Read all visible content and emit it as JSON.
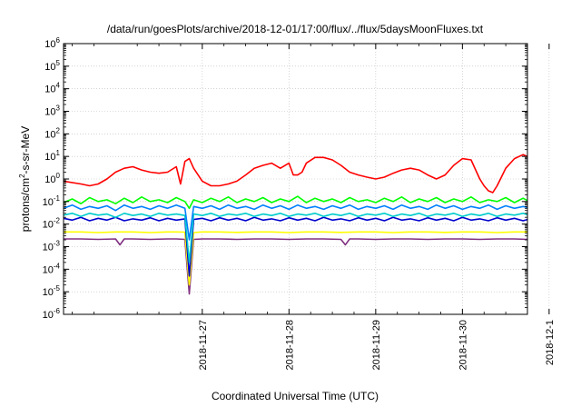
{
  "chart_data": {
    "type": "line",
    "title": "/data/run/goesPlots/archive/2018-12-01/17:00/flux/../flux/5daysMoonFluxes.txt",
    "xlabel": "Coordinated Universal Time (UTC)",
    "ylabel": {
      "base": "protons/cm",
      "sup": "2",
      "rest": "-s-sr-MeV"
    },
    "x_ticks": [
      "2018-11-27",
      "2018-11-28",
      "2018-11-29",
      "2018-11-30",
      "2018-12-1"
    ],
    "xlim_days": [
      -1.6,
      3.75
    ],
    "y_scale": "log",
    "y_ticks": [
      "10^-6",
      "10^-5",
      "10^-4",
      "10^-3",
      "10^-2",
      "10^-1",
      "10^0",
      "10^1",
      "10^2",
      "10^3",
      "10^4",
      "10^5",
      "10^6"
    ],
    "ylim_exp": [
      -6,
      6
    ],
    "grid": true,
    "series": [
      {
        "color": "#ff0000",
        "x": [
          -1.6,
          -1.4,
          -1.3,
          -1.2,
          -1.1,
          -1.0,
          -0.9,
          -0.8,
          -0.7,
          -0.6,
          -0.5,
          -0.4,
          -0.3,
          -0.25,
          -0.2,
          -0.15,
          -0.1,
          0.0,
          0.1,
          0.2,
          0.3,
          0.4,
          0.5,
          0.6,
          0.7,
          0.8,
          0.9,
          1.0,
          1.05,
          1.1,
          1.15,
          1.2,
          1.3,
          1.4,
          1.5,
          1.6,
          1.7,
          1.8,
          1.9,
          2.0,
          2.1,
          2.2,
          2.3,
          2.4,
          2.5,
          2.6,
          2.7,
          2.8,
          2.9,
          3.0,
          3.1,
          3.2,
          3.25,
          3.3,
          3.35,
          3.4,
          3.45,
          3.5,
          3.6,
          3.7,
          3.75
        ],
        "y": [
          0.8,
          0.6,
          0.5,
          0.6,
          1.0,
          2.0,
          3.0,
          3.5,
          2.5,
          2.0,
          1.8,
          2.0,
          3.5,
          0.6,
          6.0,
          8.0,
          3.0,
          0.8,
          0.5,
          0.5,
          0.6,
          0.8,
          1.5,
          3.0,
          4.0,
          5.0,
          3.0,
          5.0,
          1.5,
          1.5,
          2.0,
          5.0,
          9.0,
          9.0,
          7.0,
          4.0,
          2.0,
          1.5,
          1.2,
          1.0,
          1.2,
          1.8,
          2.5,
          3.0,
          2.5,
          1.5,
          1.0,
          1.5,
          4.0,
          8.0,
          7.0,
          1.0,
          0.5,
          0.3,
          0.25,
          0.5,
          1.2,
          3.0,
          8.0,
          12.0,
          10.0
        ]
      },
      {
        "color": "#00ff00",
        "x": [
          -1.6,
          -1.5,
          -1.4,
          -1.3,
          -1.2,
          -1.1,
          -1.0,
          -0.9,
          -0.8,
          -0.7,
          -0.6,
          -0.5,
          -0.4,
          -0.3,
          -0.2,
          -0.15,
          -0.1,
          0.0,
          0.1,
          0.2,
          0.3,
          0.4,
          0.5,
          0.6,
          0.7,
          0.8,
          0.9,
          1.0,
          1.1,
          1.2,
          1.3,
          1.4,
          1.5,
          1.6,
          1.7,
          1.8,
          1.9,
          2.0,
          2.1,
          2.2,
          2.3,
          2.4,
          2.5,
          2.6,
          2.7,
          2.8,
          2.9,
          3.0,
          3.1,
          3.2,
          3.3,
          3.4,
          3.5,
          3.6,
          3.7,
          3.75
        ],
        "y": [
          0.09,
          0.13,
          0.08,
          0.15,
          0.1,
          0.12,
          0.08,
          0.14,
          0.09,
          0.16,
          0.1,
          0.12,
          0.09,
          0.15,
          0.1,
          0.05,
          0.12,
          0.09,
          0.14,
          0.1,
          0.16,
          0.09,
          0.13,
          0.1,
          0.15,
          0.09,
          0.13,
          0.1,
          0.17,
          0.09,
          0.14,
          0.1,
          0.13,
          0.09,
          0.15,
          0.1,
          0.12,
          0.09,
          0.14,
          0.1,
          0.16,
          0.09,
          0.13,
          0.1,
          0.15,
          0.09,
          0.13,
          0.1,
          0.16,
          0.09,
          0.12,
          0.1,
          0.15,
          0.09,
          0.14,
          0.11
        ]
      },
      {
        "color": "#0080ff",
        "x": [
          -1.6,
          -1.5,
          -1.4,
          -1.3,
          -1.2,
          -1.1,
          -1.0,
          -0.9,
          -0.8,
          -0.7,
          -0.6,
          -0.5,
          -0.4,
          -0.3,
          -0.2,
          -0.15,
          -0.1,
          0.0,
          0.1,
          0.2,
          0.3,
          0.4,
          0.5,
          0.6,
          0.7,
          0.8,
          0.9,
          1.0,
          1.1,
          1.2,
          1.3,
          1.4,
          1.5,
          1.6,
          1.7,
          1.8,
          1.9,
          2.0,
          2.1,
          2.2,
          2.3,
          2.4,
          2.5,
          2.6,
          2.7,
          2.8,
          2.9,
          3.0,
          3.1,
          3.2,
          3.3,
          3.4,
          3.5,
          3.6,
          3.7,
          3.75
        ],
        "y": [
          0.05,
          0.07,
          0.045,
          0.06,
          0.05,
          0.065,
          0.04,
          0.07,
          0.05,
          0.06,
          0.045,
          0.065,
          0.05,
          0.07,
          0.05,
          0.002,
          0.06,
          0.05,
          0.065,
          0.045,
          0.07,
          0.05,
          0.06,
          0.045,
          0.07,
          0.05,
          0.065,
          0.045,
          0.07,
          0.05,
          0.06,
          0.045,
          0.065,
          0.05,
          0.07,
          0.045,
          0.06,
          0.05,
          0.065,
          0.045,
          0.07,
          0.05,
          0.06,
          0.045,
          0.07,
          0.05,
          0.065,
          0.045,
          0.06,
          0.05,
          0.07,
          0.045,
          0.065,
          0.05,
          0.06,
          0.055
        ]
      },
      {
        "color": "#00cccc",
        "x": [
          -1.6,
          -1.5,
          -1.4,
          -1.3,
          -1.2,
          -1.1,
          -1.0,
          -0.9,
          -0.8,
          -0.7,
          -0.6,
          -0.5,
          -0.4,
          -0.3,
          -0.2,
          -0.15,
          -0.1,
          0.0,
          0.1,
          0.2,
          0.3,
          0.4,
          0.5,
          0.6,
          0.7,
          0.8,
          0.9,
          1.0,
          1.1,
          1.2,
          1.3,
          1.4,
          1.5,
          1.6,
          1.7,
          1.8,
          1.9,
          2.0,
          2.1,
          2.2,
          2.3,
          2.4,
          2.5,
          2.6,
          2.7,
          2.8,
          2.9,
          3.0,
          3.1,
          3.2,
          3.3,
          3.4,
          3.5,
          3.6,
          3.7,
          3.75
        ],
        "y": [
          0.025,
          0.03,
          0.022,
          0.03,
          0.025,
          0.028,
          0.02,
          0.03,
          0.024,
          0.028,
          0.022,
          0.03,
          0.025,
          0.028,
          0.024,
          0.0002,
          0.028,
          0.024,
          0.03,
          0.022,
          0.028,
          0.025,
          0.03,
          0.022,
          0.028,
          0.024,
          0.03,
          0.022,
          0.028,
          0.025,
          0.03,
          0.022,
          0.028,
          0.024,
          0.03,
          0.022,
          0.028,
          0.025,
          0.03,
          0.022,
          0.028,
          0.024,
          0.03,
          0.022,
          0.028,
          0.025,
          0.03,
          0.022,
          0.028,
          0.024,
          0.03,
          0.022,
          0.028,
          0.025,
          0.03,
          0.026
        ]
      },
      {
        "color": "#0000cc",
        "x": [
          -1.6,
          -1.5,
          -1.4,
          -1.3,
          -1.2,
          -1.1,
          -1.0,
          -0.9,
          -0.8,
          -0.7,
          -0.6,
          -0.5,
          -0.4,
          -0.3,
          -0.2,
          -0.15,
          -0.1,
          0.0,
          0.1,
          0.2,
          0.3,
          0.4,
          0.5,
          0.6,
          0.7,
          0.8,
          0.9,
          1.0,
          1.1,
          1.2,
          1.3,
          1.4,
          1.5,
          1.6,
          1.7,
          1.8,
          1.9,
          2.0,
          2.1,
          2.2,
          2.3,
          2.4,
          2.5,
          2.6,
          2.7,
          2.8,
          2.9,
          3.0,
          3.1,
          3.2,
          3.3,
          3.4,
          3.5,
          3.6,
          3.7,
          3.75
        ],
        "y": [
          0.018,
          0.015,
          0.02,
          0.014,
          0.018,
          0.015,
          0.02,
          0.014,
          0.017,
          0.015,
          0.019,
          0.014,
          0.018,
          0.015,
          0.017,
          5e-05,
          0.016,
          0.018,
          0.014,
          0.019,
          0.015,
          0.018,
          0.014,
          0.02,
          0.015,
          0.017,
          0.014,
          0.019,
          0.015,
          0.018,
          0.014,
          0.02,
          0.015,
          0.017,
          0.014,
          0.019,
          0.015,
          0.018,
          0.014,
          0.02,
          0.015,
          0.017,
          0.014,
          0.019,
          0.015,
          0.018,
          0.014,
          0.02,
          0.015,
          0.017,
          0.014,
          0.019,
          0.015,
          0.018,
          0.014,
          0.016
        ]
      },
      {
        "color": "#ffff00",
        "x": [
          -1.6,
          -1.4,
          -1.2,
          -1.0,
          -0.8,
          -0.6,
          -0.4,
          -0.3,
          -0.2,
          -0.15,
          -0.1,
          0.0,
          0.2,
          0.4,
          0.6,
          0.8,
          1.0,
          1.2,
          1.4,
          1.6,
          1.8,
          2.0,
          2.2,
          2.4,
          2.6,
          2.8,
          3.0,
          3.2,
          3.4,
          3.6,
          3.75
        ],
        "y": [
          0.0045,
          0.0045,
          0.0042,
          0.0045,
          0.0045,
          0.0042,
          0.0045,
          0.0045,
          0.0044,
          2e-05,
          0.0042,
          0.0045,
          0.0045,
          0.0043,
          0.0045,
          0.0045,
          0.0042,
          0.0045,
          0.0045,
          0.0043,
          0.0045,
          0.0045,
          0.0042,
          0.0045,
          0.0045,
          0.0043,
          0.0045,
          0.0045,
          0.0042,
          0.0045,
          0.0045
        ]
      },
      {
        "color": "#803080",
        "x": [
          -1.6,
          -1.4,
          -1.2,
          -1.0,
          -0.95,
          -0.9,
          -0.8,
          -0.6,
          -0.4,
          -0.3,
          -0.2,
          -0.15,
          -0.1,
          0.0,
          0.2,
          0.4,
          0.6,
          0.8,
          1.0,
          1.2,
          1.4,
          1.6,
          1.65,
          1.7,
          1.8,
          2.0,
          2.2,
          2.4,
          2.6,
          2.8,
          3.0,
          3.2,
          3.4,
          3.6,
          3.75
        ],
        "y": [
          0.0022,
          0.0022,
          0.0021,
          0.0022,
          0.0012,
          0.0022,
          0.0022,
          0.0021,
          0.0022,
          0.0022,
          0.0021,
          8e-06,
          0.0021,
          0.0022,
          0.0022,
          0.0021,
          0.0022,
          0.0022,
          0.0021,
          0.0022,
          0.0022,
          0.0021,
          0.0012,
          0.0022,
          0.0022,
          0.0021,
          0.0022,
          0.0022,
          0.0021,
          0.0022,
          0.0022,
          0.0021,
          0.0022,
          0.0022,
          0.0021
        ]
      }
    ]
  }
}
